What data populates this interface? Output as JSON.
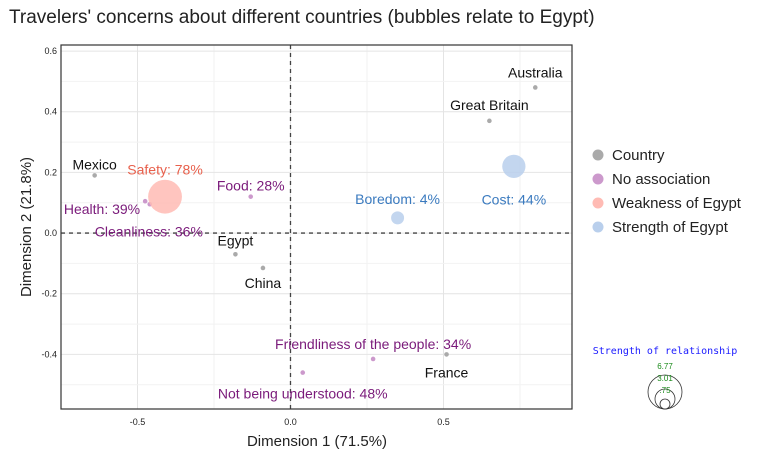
{
  "chart_data": {
    "type": "scatter",
    "title": "Travelers' concerns about different countries (bubbles relate to Egypt)",
    "xlabel": "Dimension 1 (71.5%)",
    "ylabel": "Dimension 2 (21.8%)",
    "xlim": [
      -0.75,
      0.92
    ],
    "ylim": [
      -0.58,
      0.62
    ],
    "xticks": [
      -0.5,
      0.0,
      0.5
    ],
    "xtick_labels": [
      "-0.5",
      "0.0",
      "0.5"
    ],
    "yticks": [
      0.6,
      0.4,
      0.2,
      0.0,
      -0.2,
      -0.4
    ],
    "ytick_labels": [
      "0.6",
      "0.4",
      "0.2",
      "0.0",
      "-0.2",
      "-0.4"
    ],
    "grid": true,
    "reference_lines": {
      "x": 0,
      "y": 0
    },
    "legend_position": "right",
    "series": [
      {
        "name": "Country",
        "color": "#aaaaaa",
        "label_color": "#111111",
        "points": [
          {
            "label": "Australia",
            "x": 0.8,
            "y": 0.48
          },
          {
            "label": "Great Britain",
            "x": 0.65,
            "y": 0.37
          },
          {
            "label": "Mexico",
            "x": -0.64,
            "y": 0.19
          },
          {
            "label": "Egypt",
            "x": -0.18,
            "y": -0.07
          },
          {
            "label": "China",
            "x": -0.09,
            "y": -0.115
          },
          {
            "label": "France",
            "x": 0.51,
            "y": -0.4
          }
        ]
      },
      {
        "name": "No association",
        "color": "#cc99cc",
        "label_color": "#7a1a7a",
        "points": [
          {
            "label": "Food: 28%",
            "x": -0.13,
            "y": 0.12
          },
          {
            "label": "Health: 39%",
            "x": -0.475,
            "y": 0.105
          },
          {
            "label": "Cleanliness: 36%",
            "x": -0.46,
            "y": 0.095
          },
          {
            "label": "Friendliness of the people: 34%",
            "x": 0.27,
            "y": -0.415
          },
          {
            "label": "Not being understood: 48%",
            "x": 0.04,
            "y": -0.46
          }
        ]
      },
      {
        "name": "Weakness of Egypt",
        "color": "#ffbbb4",
        "label_color": "#e8604c",
        "points": [
          {
            "label": "Safety: 78%",
            "x": -0.41,
            "y": 0.12,
            "strength": 6.77
          }
        ]
      },
      {
        "name": "Strength of Egypt",
        "color": "#b9cfec",
        "label_color": "#3a7abf",
        "points": [
          {
            "label": "Boredom: 4%",
            "x": 0.35,
            "y": 0.05,
            "strength": 1.0
          },
          {
            "label": "Cost: 44%",
            "x": 0.73,
            "y": 0.22,
            "strength": 3.2
          }
        ]
      }
    ],
    "size_legend": {
      "title": "Strength of relationship",
      "values": [
        "6.77",
        "3.01",
        ".75"
      ]
    }
  }
}
